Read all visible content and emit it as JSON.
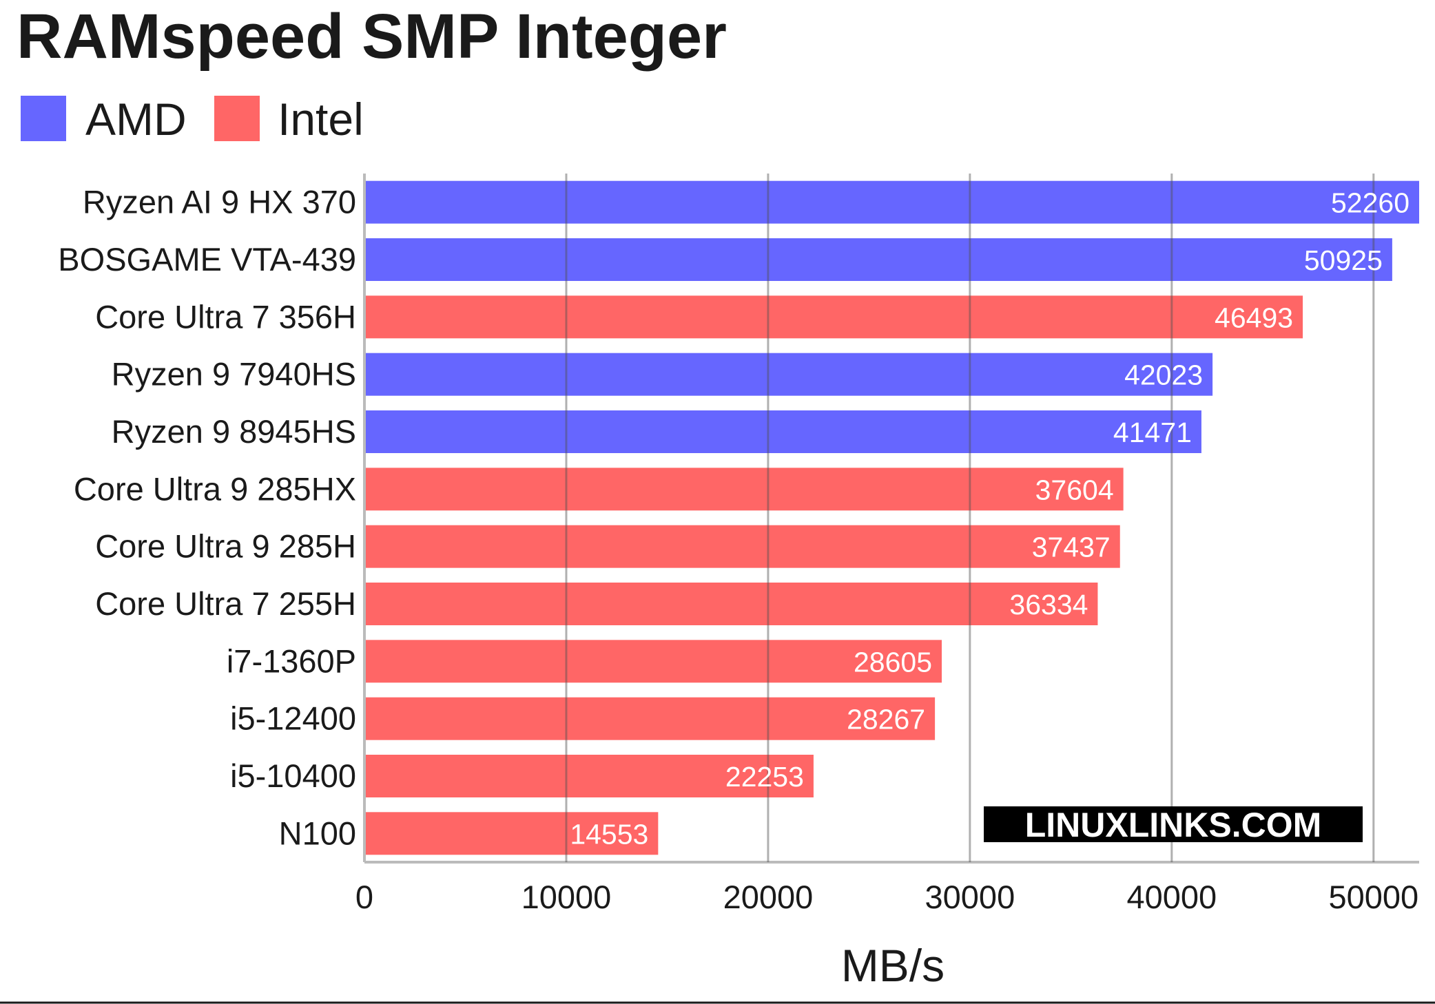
{
  "chart_data": {
    "type": "bar",
    "orientation": "horizontal",
    "title": "RAMspeed SMP Integer",
    "xlabel": "MB/s",
    "ylabel": "",
    "xlim": [
      0,
      52260
    ],
    "x_ticks": [
      0,
      10000,
      20000,
      30000,
      40000,
      50000
    ],
    "grid": "vertical",
    "legend_position": "top-left",
    "legend": [
      {
        "name": "AMD",
        "color": "#6666ff"
      },
      {
        "name": "Intel",
        "color": "#ff6666"
      }
    ],
    "categories": [
      "Ryzen AI 9 HX 370",
      "BOSGAME VTA-439",
      "Core Ultra 7 356H",
      "Ryzen 9 7940HS",
      "Ryzen 9 8945HS",
      "Core Ultra 9 285HX",
      "Core Ultra 9 285H",
      "Core Ultra 7 255H",
      "i7-1360P",
      "i5-12400",
      "i5-10400",
      "N100"
    ],
    "values": [
      52260,
      50925,
      46493,
      42023,
      41471,
      37604,
      37437,
      36334,
      28605,
      28267,
      22253,
      14553
    ],
    "groups": [
      "AMD",
      "AMD",
      "Intel",
      "AMD",
      "AMD",
      "Intel",
      "Intel",
      "Intel",
      "Intel",
      "Intel",
      "Intel",
      "Intel"
    ],
    "watermark": "LINUXLINKS.COM"
  }
}
